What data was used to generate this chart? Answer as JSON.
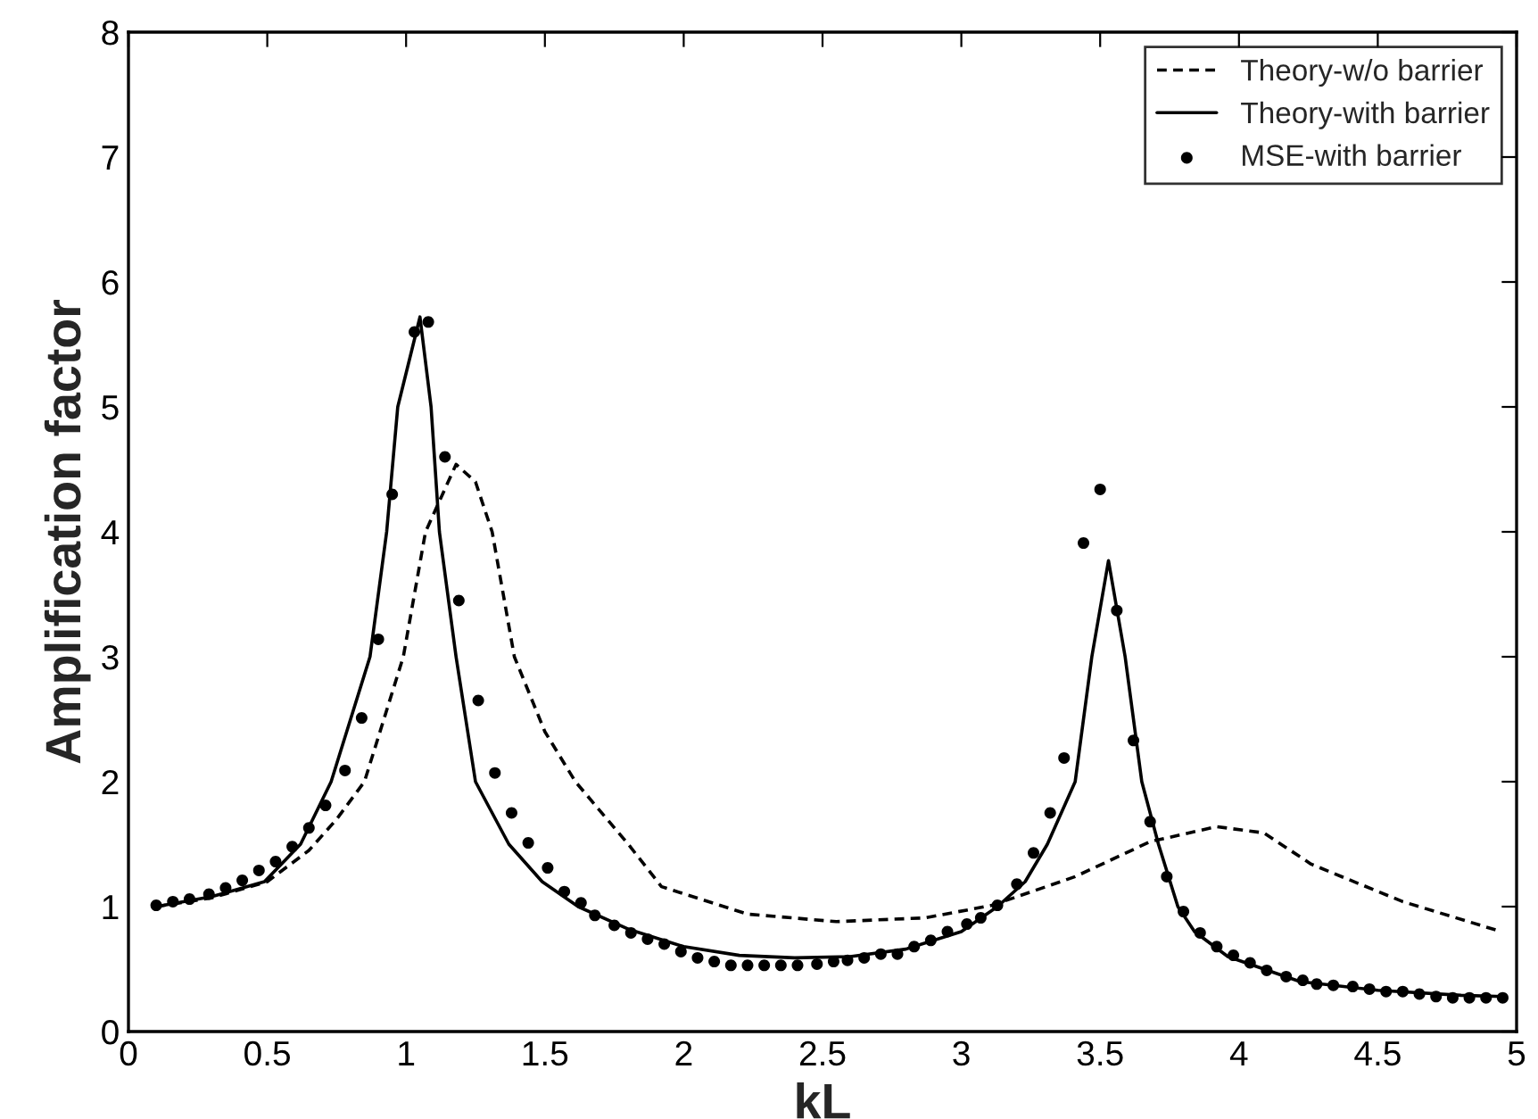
{
  "chart_data": {
    "type": "line",
    "xlabel": "kL",
    "ylabel": "Amplification factor",
    "xlim": [
      0,
      5
    ],
    "ylim": [
      0,
      8
    ],
    "xticks": [
      0,
      0.5,
      1,
      1.5,
      2,
      2.5,
      3,
      3.5,
      4,
      4.5,
      5
    ],
    "yticks": [
      0,
      1,
      2,
      3,
      4,
      5,
      6,
      7,
      8
    ],
    "grid": false,
    "legend": "top right",
    "series": [
      {
        "name": "Theory-w/o barrier",
        "color": "#000000",
        "line_style": "dashed",
        "marker": "none",
        "x": [
          0.1,
          0.3,
          0.5,
          0.65,
          0.75,
          0.85,
          0.92,
          0.99,
          1.07,
          1.18,
          1.25,
          1.31,
          1.39,
          1.5,
          1.61,
          1.8,
          1.92,
          2.23,
          2.55,
          2.87,
          3.11,
          3.41,
          3.68,
          3.92,
          4.09,
          4.26,
          4.59,
          4.93
        ],
        "values": [
          1.0,
          1.07,
          1.2,
          1.45,
          1.7,
          2.0,
          2.5,
          3.0,
          4.0,
          4.54,
          4.4,
          4.0,
          3.0,
          2.4,
          2.0,
          1.5,
          1.16,
          0.94,
          0.88,
          0.91,
          1.01,
          1.24,
          1.52,
          1.64,
          1.59,
          1.34,
          1.04,
          0.81
        ]
      },
      {
        "name": "Theory-with barrier",
        "color": "#000000",
        "line_style": "solid",
        "marker": "none",
        "x": [
          0.1,
          0.3,
          0.49,
          0.62,
          0.73,
          0.8,
          0.87,
          0.93,
          0.97,
          1.05,
          1.09,
          1.12,
          1.18,
          1.25,
          1.37,
          1.49,
          1.62,
          1.8,
          2.0,
          2.2,
          2.4,
          2.6,
          2.8,
          3.0,
          3.13,
          3.23,
          3.31,
          3.41,
          3.47,
          3.53,
          3.59,
          3.65,
          3.71,
          3.78,
          3.84,
          3.96,
          4.22,
          4.5,
          4.8,
          4.95
        ],
        "values": [
          1.0,
          1.08,
          1.2,
          1.5,
          2.0,
          2.5,
          3.0,
          4.0,
          5.0,
          5.72,
          5.0,
          4.0,
          3.0,
          2.0,
          1.5,
          1.2,
          1.0,
          0.82,
          0.68,
          0.61,
          0.59,
          0.6,
          0.66,
          0.8,
          1.0,
          1.2,
          1.5,
          2.0,
          3.0,
          3.77,
          3.0,
          2.0,
          1.5,
          1.0,
          0.8,
          0.6,
          0.4,
          0.33,
          0.29,
          0.28
        ]
      },
      {
        "name": "MSE-with barrier",
        "type": "scatter",
        "color": "#000000",
        "marker": "circle",
        "x": [
          0.1,
          0.16,
          0.22,
          0.29,
          0.35,
          0.41,
          0.47,
          0.53,
          0.59,
          0.65,
          0.71,
          0.78,
          0.84,
          0.9,
          0.95,
          1.03,
          1.08,
          1.14,
          1.19,
          1.26,
          1.32,
          1.38,
          1.44,
          1.51,
          1.57,
          1.63,
          1.68,
          1.75,
          1.81,
          1.87,
          1.93,
          1.99,
          2.05,
          2.11,
          2.17,
          2.23,
          2.29,
          2.35,
          2.41,
          2.48,
          2.54,
          2.59,
          2.65,
          2.71,
          2.77,
          2.83,
          2.89,
          2.95,
          3.02,
          3.07,
          3.13,
          3.2,
          3.26,
          3.32,
          3.37,
          3.44,
          3.5,
          3.56,
          3.62,
          3.68,
          3.74,
          3.8,
          3.86,
          3.92,
          3.98,
          4.04,
          4.1,
          4.17,
          4.23,
          4.28,
          4.34,
          4.41,
          4.47,
          4.53,
          4.59,
          4.65,
          4.71,
          4.77,
          4.83,
          4.89,
          4.95
        ],
        "values": [
          1.01,
          1.04,
          1.06,
          1.1,
          1.15,
          1.21,
          1.29,
          1.36,
          1.48,
          1.63,
          1.81,
          2.09,
          2.51,
          3.14,
          4.3,
          5.6,
          5.68,
          4.6,
          3.45,
          2.65,
          2.07,
          1.75,
          1.51,
          1.31,
          1.12,
          1.03,
          0.93,
          0.85,
          0.79,
          0.74,
          0.7,
          0.64,
          0.59,
          0.56,
          0.53,
          0.53,
          0.53,
          0.53,
          0.53,
          0.54,
          0.56,
          0.57,
          0.59,
          0.62,
          0.62,
          0.68,
          0.73,
          0.8,
          0.86,
          0.91,
          1.01,
          1.18,
          1.43,
          1.75,
          2.19,
          3.91,
          4.34,
          3.37,
          2.33,
          1.68,
          1.24,
          0.96,
          0.79,
          0.68,
          0.61,
          0.55,
          0.49,
          0.44,
          0.41,
          0.38,
          0.37,
          0.36,
          0.34,
          0.32,
          0.32,
          0.3,
          0.28,
          0.27,
          0.27,
          0.27,
          0.27
        ]
      }
    ]
  }
}
